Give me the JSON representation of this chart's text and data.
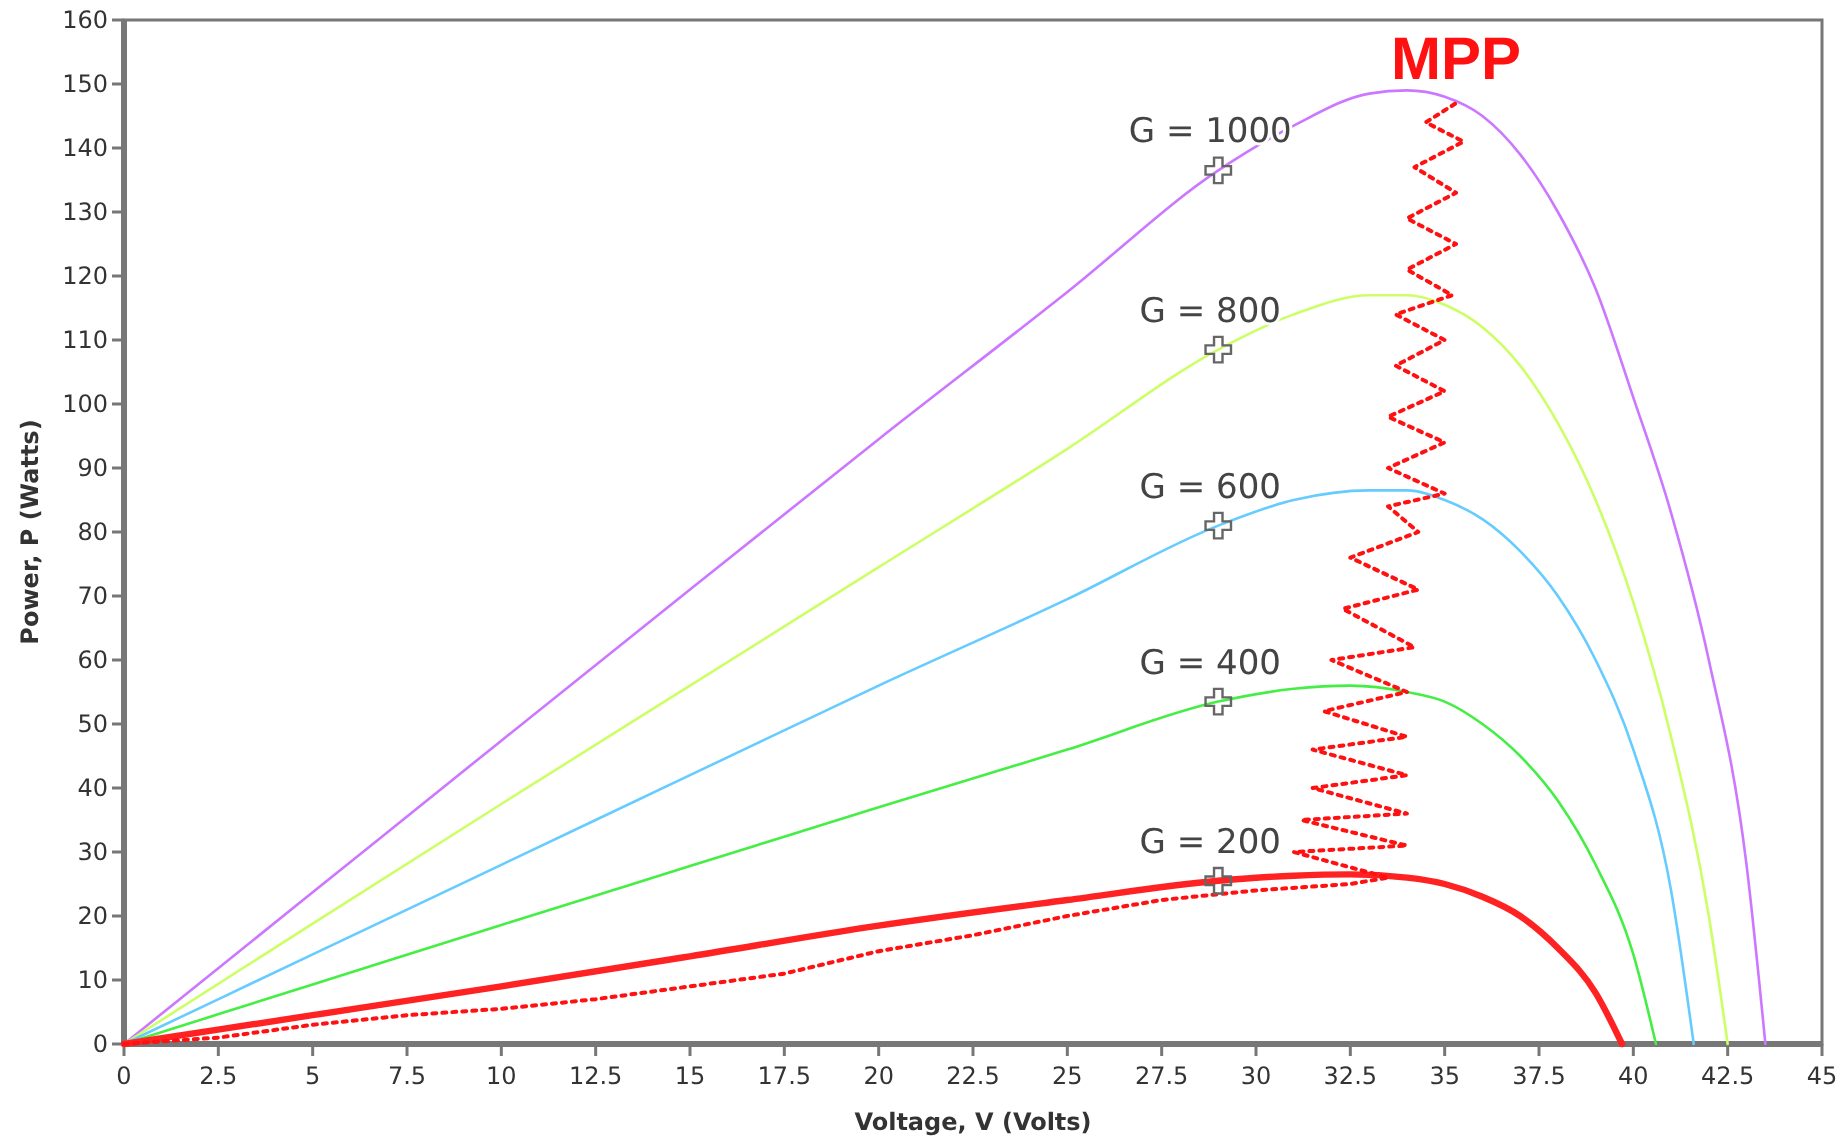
{
  "chart_data": {
    "type": "line",
    "xlabel": "Voltage, V (Volts)",
    "ylabel": "Power, P (Watts)",
    "xlim": [
      0,
      45
    ],
    "ylim": [
      0,
      160
    ],
    "xticks": [
      0,
      2.5,
      5,
      7.5,
      10,
      12.5,
      15,
      17.5,
      20,
      22.5,
      25,
      27.5,
      30,
      32.5,
      35,
      37.5,
      40,
      42.5,
      45
    ],
    "yticks": [
      0,
      10,
      20,
      30,
      40,
      50,
      60,
      70,
      80,
      90,
      100,
      110,
      120,
      130,
      140,
      150,
      160
    ],
    "grid": false,
    "series": [
      {
        "name": "G = 1000",
        "color": "#cc77ff",
        "x": [
          0,
          5,
          10,
          15,
          20,
          25,
          29,
          31,
          33,
          34,
          35,
          36,
          37,
          38,
          39,
          40,
          41,
          42,
          43,
          43.5
        ],
        "values": [
          0,
          23.7,
          47.4,
          71,
          94.5,
          117.5,
          136.5,
          143.5,
          148.5,
          149,
          148,
          145,
          139,
          130,
          118,
          101,
          83,
          60,
          28,
          0
        ]
      },
      {
        "name": "G = 800",
        "color": "#ccff66",
        "x": [
          0,
          5,
          10,
          15,
          20,
          25,
          29,
          31,
          33,
          34,
          35,
          36,
          37,
          38,
          39,
          40,
          41,
          42,
          42.5
        ],
        "values": [
          0,
          18.8,
          37.5,
          56,
          74.5,
          93,
          108.5,
          114,
          117,
          117,
          115.5,
          112,
          106,
          97,
          85,
          69,
          48,
          20,
          0
        ]
      },
      {
        "name": "G = 600",
        "color": "#66ccff",
        "x": [
          0,
          5,
          10,
          15,
          20,
          25,
          29,
          31,
          33,
          34,
          35,
          36,
          37,
          38,
          39,
          40,
          41,
          41.6
        ],
        "values": [
          0,
          14,
          28,
          42,
          56,
          69.5,
          81,
          85,
          86.5,
          86.5,
          85,
          82,
          77,
          70,
          60,
          46,
          24,
          0
        ]
      },
      {
        "name": "G = 400",
        "color": "#44ee44",
        "x": [
          0,
          5,
          10,
          15,
          20,
          25,
          29,
          31,
          32.5,
          34,
          35,
          36,
          37,
          38,
          39,
          40,
          40.6
        ],
        "values": [
          0,
          9.3,
          18.6,
          27.8,
          37,
          46,
          53.5,
          55.5,
          56,
          55,
          53.5,
          50,
          45,
          38,
          28,
          14,
          0
        ]
      },
      {
        "name": "G = 200",
        "color": "#ff2222",
        "x": [
          0,
          5,
          10,
          15,
          20,
          25,
          29,
          31,
          32.5,
          34,
          35,
          36,
          37,
          38,
          39,
          39.7
        ],
        "values": [
          0,
          4.5,
          9,
          13.7,
          18.5,
          22.5,
          25.5,
          26.3,
          26.5,
          26,
          25,
          23,
          20,
          15,
          8,
          0
        ]
      },
      {
        "name": "MPP",
        "color": "#ff1111",
        "line_style": "dotted",
        "x": [
          0,
          2.5,
          5,
          7.5,
          10,
          12.5,
          15,
          17.5,
          20,
          22.5,
          25,
          27.5,
          30,
          32.5,
          33.5,
          31,
          34,
          31.2,
          34,
          31.5,
          34,
          31.5,
          34,
          31.8,
          34,
          32,
          34.2,
          32.3,
          34.3,
          32.5,
          34.3,
          33.5,
          35,
          33.5,
          35,
          33.5,
          35,
          33.7,
          35,
          33.7,
          35.2,
          34,
          35.3,
          34,
          35.3,
          34.2,
          35.5,
          34.5,
          35.3
        ],
        "values": [
          0,
          1,
          3,
          4.5,
          5.5,
          7,
          9,
          11,
          14.5,
          17,
          20,
          22.5,
          24,
          25,
          26,
          30,
          31,
          35,
          36,
          40,
          42,
          46,
          48,
          52,
          55,
          60,
          62,
          68,
          71,
          76,
          80,
          84,
          86,
          90,
          94,
          98,
          102,
          106,
          110,
          114,
          117,
          121,
          125,
          129,
          133,
          137,
          141,
          144,
          147
        ]
      },
      {
        "type": "scatter",
        "marker": "cross",
        "color": "#666666",
        "x": [
          29,
          29,
          29,
          29,
          29
        ],
        "values": [
          136.5,
          108.5,
          81,
          53.5,
          25.5
        ]
      }
    ]
  }
}
